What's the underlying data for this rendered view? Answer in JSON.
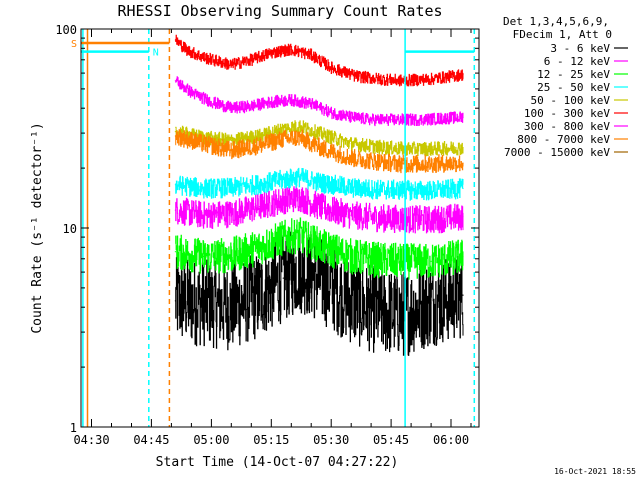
{
  "chart_data": {
    "type": "line",
    "title": "RHESSI Observing Summary Count Rates",
    "xlabel": "Start Time (14-Oct-07 04:27:22)",
    "ylabel": "Count Rate (s⁻¹ detector⁻¹)",
    "y_scale": "log",
    "ylim": [
      1,
      100
    ],
    "x_range_minutes": [
      "04:27:22",
      "06:07:00"
    ],
    "x_ticks": [
      "04:30",
      "04:45",
      "05:00",
      "05:15",
      "05:30",
      "05:45",
      "06:00"
    ],
    "y_ticks": [
      "1",
      "10",
      "100"
    ],
    "grid": false,
    "legend_position": "top-right",
    "legend_header": [
      "Det 1,3,4,5,6,9,",
      "FDecim 1, Att 0"
    ],
    "series": [
      {
        "name": "3 - 6 keV",
        "color": "#000000",
        "x": [
          "04:51",
          "04:58",
          "05:05",
          "05:12",
          "05:18",
          "05:22",
          "05:28",
          "05:35",
          "05:42",
          "05:48",
          "05:55",
          "06:03"
        ],
        "values": [
          4.3,
          4.2,
          4.0,
          4.6,
          5.6,
          6.2,
          5.4,
          4.3,
          3.8,
          3.7,
          4.2,
          4.6
        ]
      },
      {
        "name": "6 - 12 keV",
        "color": "#ff00ff",
        "x": [
          "04:51",
          "04:58",
          "05:05",
          "05:12",
          "05:18",
          "05:22",
          "05:28",
          "05:35",
          "05:42",
          "05:48",
          "05:55",
          "06:03"
        ],
        "values": [
          12.3,
          11.6,
          11.8,
          12.8,
          13.8,
          14.2,
          12.6,
          11.6,
          11.2,
          11.1,
          11.0,
          11.4
        ]
      },
      {
        "name": "12 - 25 keV",
        "color": "#00ff00",
        "x": [
          "04:51",
          "04:58",
          "05:05",
          "05:12",
          "05:18",
          "05:22",
          "05:28",
          "05:35",
          "05:42",
          "05:48",
          "05:55",
          "06:03"
        ],
        "values": [
          7.6,
          7.2,
          7.3,
          8.0,
          8.9,
          9.2,
          8.0,
          7.2,
          6.9,
          6.8,
          6.8,
          7.2
        ]
      },
      {
        "name": "25 - 50 keV",
        "color": "#00ffff",
        "x": [
          "04:51",
          "04:58",
          "05:05",
          "05:12",
          "05:18",
          "05:22",
          "05:28",
          "05:35",
          "05:42",
          "05:48",
          "05:55",
          "06:03"
        ],
        "values": [
          16.5,
          15.8,
          15.9,
          16.6,
          17.5,
          18.0,
          16.8,
          15.9,
          15.6,
          15.5,
          15.4,
          15.8
        ]
      },
      {
        "name": "50 - 100 keV",
        "color": "#c8c800",
        "x": [
          "04:51",
          "04:58",
          "05:05",
          "05:12",
          "05:18",
          "05:22",
          "05:28",
          "05:35",
          "05:42",
          "05:48",
          "05:55",
          "06:03"
        ],
        "values": [
          30.5,
          28.5,
          27.5,
          29.0,
          31.5,
          32.5,
          29.5,
          26.5,
          25.5,
          25.0,
          25.0,
          25.3
        ]
      },
      {
        "name": "100 - 300 keV",
        "color": "#ff0000",
        "x": [
          "04:51",
          "04:54",
          "04:58",
          "05:05",
          "05:10",
          "05:15",
          "05:20",
          "05:25",
          "05:30",
          "05:36",
          "05:42",
          "05:48",
          "05:55",
          "06:03"
        ],
        "values": [
          88,
          78,
          72,
          66,
          70,
          76,
          79,
          74,
          64,
          58,
          56,
          55,
          56,
          59
        ]
      },
      {
        "name": "300 - 800 keV",
        "color": "#ff00ff",
        "x": [
          "04:51",
          "04:55",
          "05:00",
          "05:05",
          "05:10",
          "05:15",
          "05:20",
          "05:25",
          "05:30",
          "05:35",
          "05:40",
          "05:45",
          "05:52",
          "06:03"
        ],
        "values": [
          55,
          48,
          43,
          40,
          41,
          43,
          44,
          42,
          38,
          36,
          35,
          35,
          35,
          36
        ]
      },
      {
        "name": "800 - 7000 keV",
        "color": "#ff8000",
        "x": [
          "04:51",
          "04:58",
          "05:05",
          "05:12",
          "05:18",
          "05:22",
          "05:28",
          "05:35",
          "05:42",
          "05:48",
          "05:55",
          "06:03"
        ],
        "values": [
          29.0,
          26.5,
          24.5,
          26.0,
          28.0,
          28.5,
          25.0,
          22.5,
          21.5,
          21.0,
          21.0,
          21.2
        ]
      },
      {
        "name": "7000 - 15000 keV",
        "color": "#a06400",
        "x": [],
        "values": []
      }
    ],
    "markers": [
      {
        "label": "S",
        "color": "#ff8000",
        "level": 85,
        "x_start": "04:27:22",
        "x_end": "04:49:30"
      },
      {
        "label": "N",
        "color": "#00ffff",
        "level": 77,
        "x_start": "04:27:22",
        "x_end": "04:44:20"
      }
    ],
    "end_bar_level": 77,
    "vlines": [
      {
        "x": "04:27:50",
        "color": "#00ffff",
        "style": "solid"
      },
      {
        "x": "04:29:00",
        "color": "#ff8000",
        "style": "solid"
      },
      {
        "x": "04:44:20",
        "color": "#00ffff",
        "style": "dashed"
      },
      {
        "x": "04:49:30",
        "color": "#ff8000",
        "style": "dashed"
      },
      {
        "x": "05:48:30",
        "color": "#00ffff",
        "style": "solid"
      },
      {
        "x": "06:05:50",
        "color": "#00ffff",
        "style": "dashed"
      }
    ],
    "timestamp": "16-Oct-2021 18:55"
  }
}
